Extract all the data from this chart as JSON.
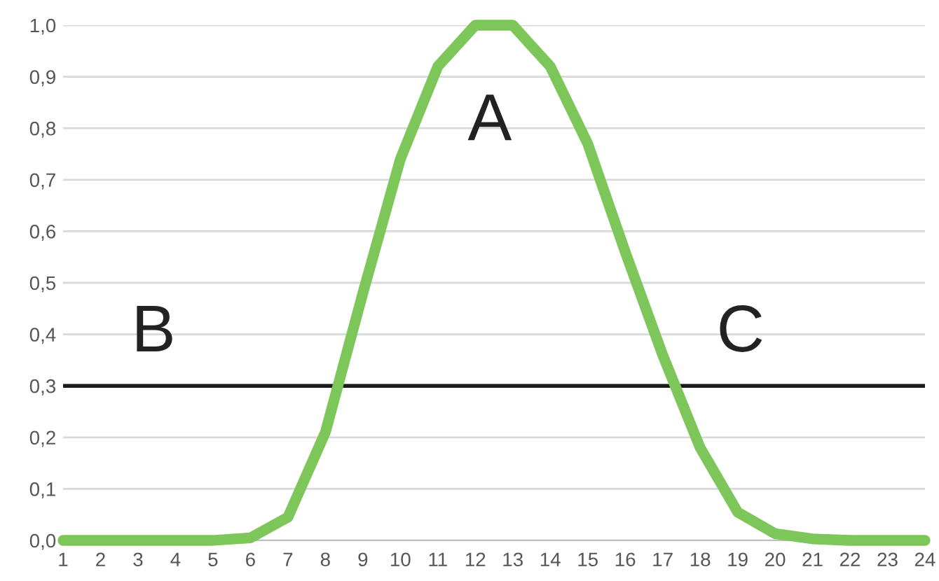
{
  "chart_data": {
    "type": "line",
    "x": [
      1,
      2,
      3,
      4,
      5,
      6,
      7,
      8,
      9,
      10,
      11,
      12,
      13,
      14,
      15,
      16,
      17,
      18,
      19,
      20,
      21,
      22,
      23,
      24
    ],
    "series": [
      {
        "color": "#7dc75a",
        "values": [
          0,
          0,
          0,
          0,
          0,
          0.005,
          0.045,
          0.21,
          0.48,
          0.74,
          0.92,
          1.0,
          1.0,
          0.92,
          0.77,
          0.56,
          0.36,
          0.18,
          0.055,
          0.013,
          0.003,
          0,
          0,
          0
        ]
      }
    ],
    "xlim": [
      1,
      24
    ],
    "xticks": [
      1,
      2,
      3,
      4,
      5,
      6,
      7,
      8,
      9,
      10,
      11,
      12,
      13,
      14,
      15,
      16,
      17,
      18,
      19,
      20,
      21,
      22,
      23,
      24
    ],
    "ylim": [
      0,
      1.0
    ],
    "yticks": [
      {
        "value": 0,
        "label": "0,0"
      },
      {
        "value": 0.1,
        "label": "0,1"
      },
      {
        "value": 0.2,
        "label": "0,2"
      },
      {
        "value": 0.3,
        "label": "0,3"
      },
      {
        "value": 0.4,
        "label": "0,4"
      },
      {
        "value": 0.5,
        "label": "0,5"
      },
      {
        "value": 0.6,
        "label": "0,6"
      },
      {
        "value": 0.7,
        "label": "0,7"
      },
      {
        "value": 0.8,
        "label": "0,8"
      },
      {
        "value": 0.9,
        "label": "0,9"
      },
      {
        "value": 1.0,
        "label": "1,0"
      }
    ],
    "ref_lines": [
      {
        "axis": "y",
        "value": 0.3,
        "color": "#1a1a1a"
      }
    ],
    "annotations": [
      "A",
      "B",
      "C"
    ],
    "grid": "y",
    "marker": "none",
    "line_style": "solid"
  }
}
